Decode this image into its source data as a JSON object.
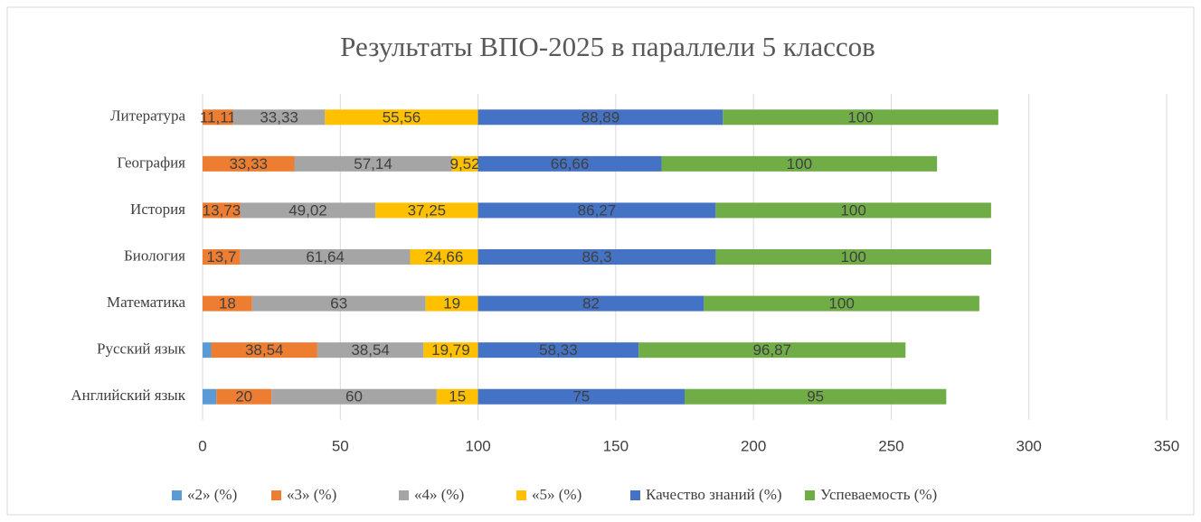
{
  "chart_data": {
    "type": "stacked_barh",
    "title": "Результаты ВПО-2025 в параллели 5 классов",
    "categories": [
      "Литература",
      "География",
      "История",
      "Биология",
      "Математика",
      "Русский язык",
      "Английский язык"
    ],
    "series": [
      {
        "name": "«2» (%)",
        "color": "#5b9bd5",
        "values": [
          0,
          0,
          0,
          0,
          0,
          3.13,
          5
        ],
        "value_labels": [
          null,
          null,
          null,
          null,
          null,
          null,
          null
        ]
      },
      {
        "name": "«3» (%)",
        "color": "#ed7d31",
        "values": [
          11.11,
          33.33,
          13.73,
          13.7,
          18,
          38.54,
          20
        ],
        "value_labels": [
          "11,11",
          "33,33",
          "13,73",
          "13,7",
          "18",
          "38,54",
          "20"
        ]
      },
      {
        "name": "«4» (%)",
        "color": "#a5a5a5",
        "values": [
          33.33,
          57.14,
          49.02,
          61.64,
          63,
          38.54,
          60
        ],
        "value_labels": [
          "33,33",
          "57,14",
          "49,02",
          "61,64",
          "63",
          "38,54",
          "60"
        ]
      },
      {
        "name": "«5» (%)",
        "color": "#ffc000",
        "values": [
          55.56,
          9.52,
          37.25,
          24.66,
          19,
          19.79,
          15
        ],
        "value_labels": [
          "55,56",
          "9,52",
          "37,25",
          "24,66",
          "19",
          "19,79",
          "15"
        ]
      },
      {
        "name": "Качество знаний (%)",
        "color": "#4472c4",
        "values": [
          88.89,
          66.66,
          86.27,
          86.3,
          82,
          58.33,
          75
        ],
        "value_labels": [
          "88,89",
          "66,66",
          "86,27",
          "86,3",
          "82",
          "58,33",
          "75"
        ]
      },
      {
        "name": "Успеваемость (%)",
        "color": "#70ad47",
        "values": [
          100,
          100,
          100,
          100,
          100,
          96.87,
          95
        ],
        "value_labels": [
          "100",
          "100",
          "100",
          "100",
          "100",
          "96,87",
          "95"
        ]
      }
    ],
    "xlim": [
      0,
      350
    ],
    "xticks": [
      0,
      50,
      100,
      150,
      200,
      250,
      300,
      350
    ],
    "grid": true,
    "legend": "bottom"
  }
}
